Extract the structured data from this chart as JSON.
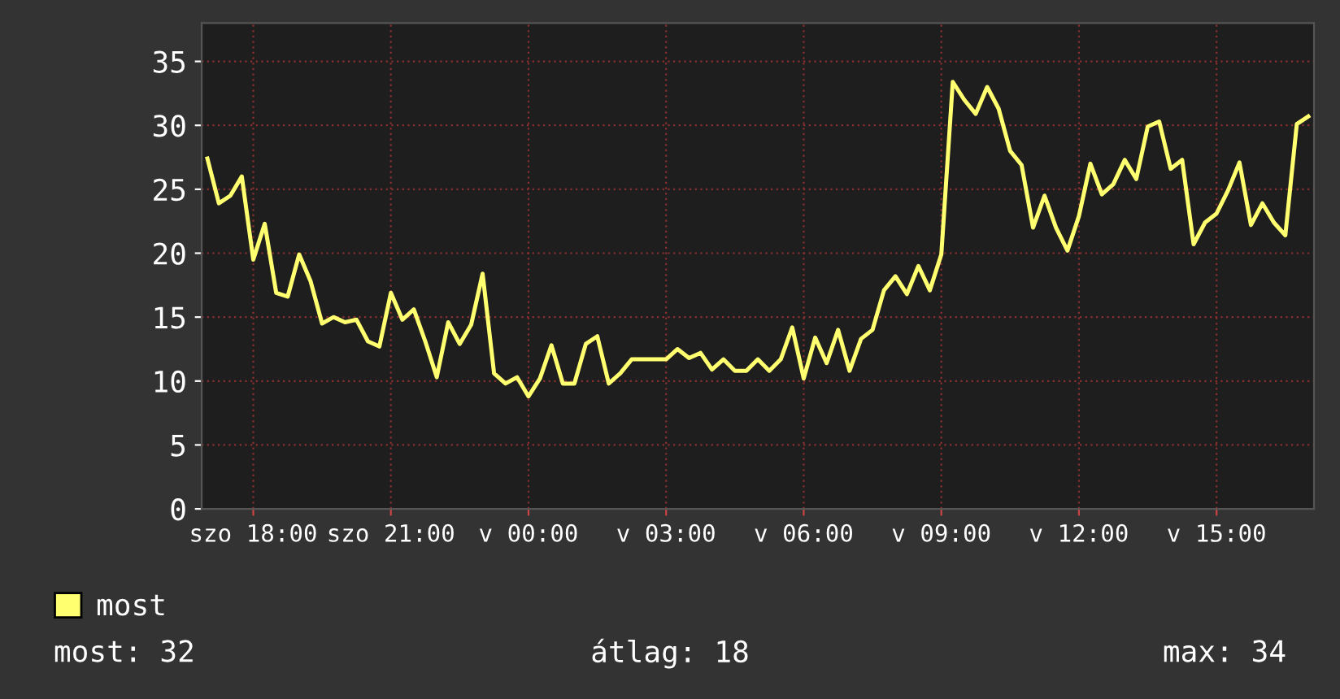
{
  "chart_data": {
    "type": "line",
    "categories": [
      null,
      null,
      null,
      null,
      "szo 18:00",
      null,
      null,
      null,
      null,
      null,
      null,
      null,
      null,
      null,
      null,
      null,
      "szo 21:00",
      null,
      null,
      null,
      null,
      null,
      null,
      null,
      null,
      null,
      null,
      null,
      "v 00:00",
      null,
      null,
      null,
      null,
      null,
      null,
      null,
      null,
      null,
      null,
      null,
      "v 03:00",
      null,
      null,
      null,
      null,
      null,
      null,
      null,
      null,
      null,
      null,
      null,
      "v 06:00",
      null,
      null,
      null,
      null,
      null,
      null,
      null,
      null,
      null,
      null,
      null,
      "v 09:00",
      null,
      null,
      null,
      null,
      null,
      null,
      null,
      null,
      null,
      null,
      null,
      "v 12:00",
      null,
      null,
      null,
      null,
      null,
      null,
      null,
      null,
      null,
      null,
      null,
      "v 15:00",
      null,
      null,
      null,
      null,
      null,
      null,
      null,
      null
    ],
    "series": [
      {
        "name": "most",
        "color": "#ffff70",
        "values": [
          27.4,
          23.9,
          24.5,
          26,
          19.5,
          22.3,
          16.9,
          16.6,
          19.9,
          17.8,
          14.5,
          15,
          14.6,
          14.8,
          13.1,
          12.7,
          16.9,
          14.8,
          15.6,
          13.1,
          10.3,
          14.6,
          12.9,
          14.4,
          18.4,
          10.6,
          9.8,
          10.3,
          8.8,
          10.2,
          12.8,
          9.8,
          9.8,
          12.9,
          13.5,
          9.8,
          10.6,
          11.7,
          11.7,
          11.7,
          11.7,
          12.5,
          11.8,
          12.2,
          10.9,
          11.7,
          10.8,
          10.8,
          11.7,
          10.8,
          11.7,
          14.2,
          10.2,
          13.4,
          11.4,
          14,
          10.8,
          13.3,
          14,
          17.1,
          18.2,
          16.8,
          19,
          17.1,
          19.9,
          33.4,
          32,
          30.9,
          33,
          31.3,
          28,
          26.9,
          22,
          24.5,
          22,
          20.2,
          22.9,
          27,
          24.6,
          25.4,
          27.3,
          25.8,
          29.9,
          30.3,
          26.6,
          27.3,
          20.7,
          22.4,
          23.1,
          24.9,
          27.1,
          22.2,
          23.9,
          22.4,
          21.4,
          30.1,
          30.7
        ]
      }
    ],
    "ylim": [
      0,
      38
    ],
    "yticks": [
      0,
      5,
      10,
      15,
      20,
      25,
      30,
      35
    ],
    "grid": true,
    "legend": "bottom left",
    "marker": "none",
    "line_style": "solid",
    "annotations": [
      "most: 32",
      "átlag: 18",
      "max: 34"
    ]
  }
}
